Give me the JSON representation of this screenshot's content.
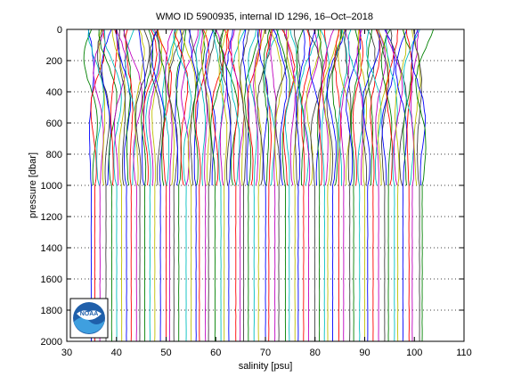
{
  "chart_data": {
    "type": "line",
    "title": "WMO ID 5900935, internal ID 1296, 16–Oct–2018",
    "xlabel": "salinity [psu]",
    "ylabel": "pressure [dbar]",
    "xlim": [
      30,
      110
    ],
    "ylim": [
      0,
      2000
    ],
    "y_reversed": true,
    "x_ticks": [
      "30",
      "40",
      "50",
      "60",
      "70",
      "80",
      "90",
      "100",
      "110"
    ],
    "y_ticks": [
      "0",
      "200",
      "400",
      "600",
      "800",
      "1000",
      "1200",
      "1400",
      "1600",
      "1800",
      "2000"
    ],
    "grid": "dotted horizontal",
    "profile_count": 135,
    "profile_offset_step": 0.5,
    "upper_profile_depth": 1000,
    "deep_profile_every": 2,
    "deep_profile_depth": 2000,
    "series_colors": [
      "#0000ff",
      "#008000",
      "#ff0000",
      "#00bfbf",
      "#bf00bf",
      "#bfbf00",
      "#404040"
    ],
    "logo": {
      "text": "NOAA",
      "description": "agency seal in lower-left corner"
    }
  }
}
